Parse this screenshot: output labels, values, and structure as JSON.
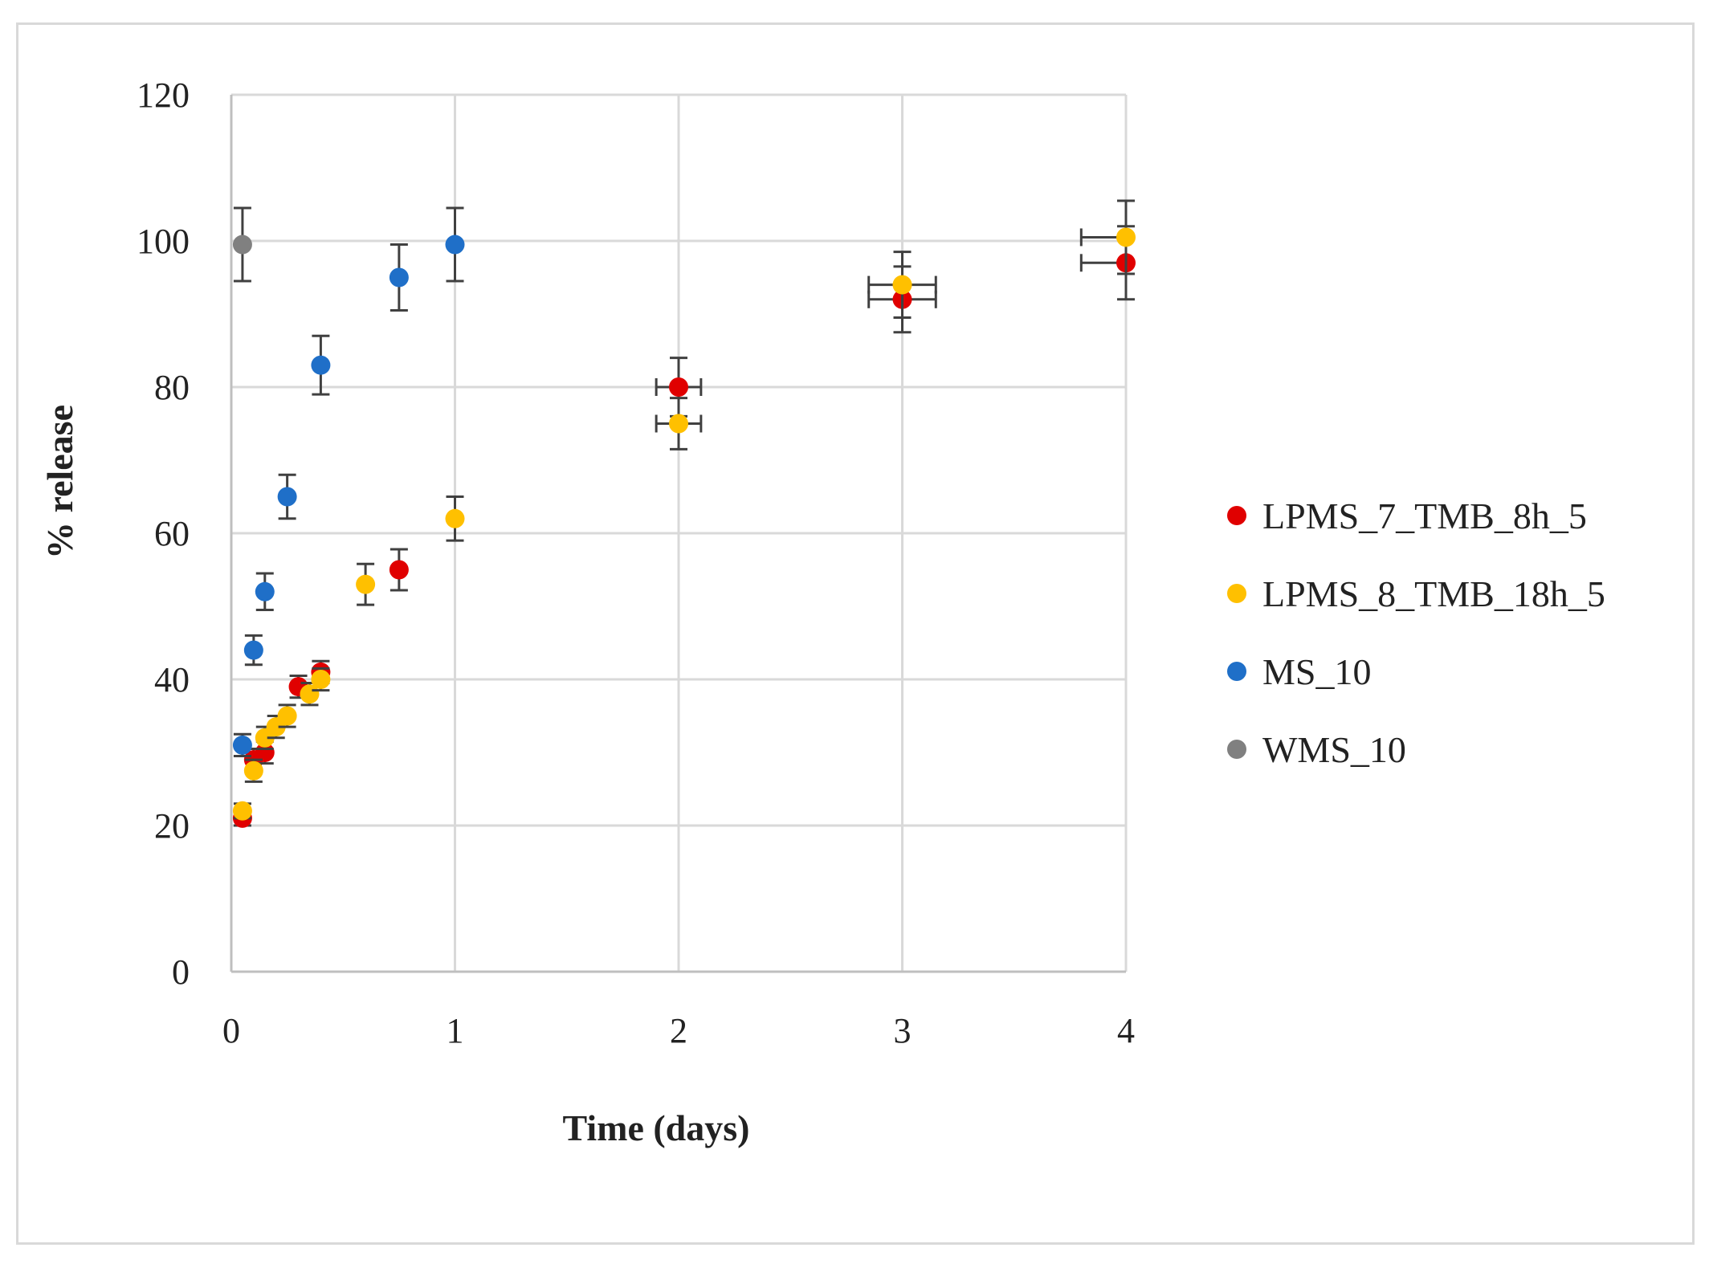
{
  "chart_data": {
    "type": "scatter",
    "title": "",
    "xlabel": "Time (days)",
    "ylabel": "% release",
    "xlim": [
      0,
      4
    ],
    "ylim": [
      0,
      120
    ],
    "xticks": [
      "0",
      "1",
      "2",
      "3",
      "4"
    ],
    "yticks": [
      "0",
      "20",
      "40",
      "60",
      "80",
      "100",
      "120"
    ],
    "grid": true,
    "legend_position": "right",
    "series": [
      {
        "name": "LPMS_7_TMB_8h_5",
        "color": "#e00000",
        "points": [
          {
            "x": 0.05,
            "y": 21,
            "yerr": 1,
            "xerr": 0
          },
          {
            "x": 0.1,
            "y": 29,
            "yerr": 1.5,
            "xerr": 0
          },
          {
            "x": 0.15,
            "y": 30,
            "yerr": 1.5,
            "xerr": 0
          },
          {
            "x": 0.3,
            "y": 39,
            "yerr": 1.5,
            "xerr": 0
          },
          {
            "x": 0.4,
            "y": 41,
            "yerr": 1.5,
            "xerr": 0
          },
          {
            "x": 0.75,
            "y": 55,
            "yerr": 2.8,
            "xerr": 0
          },
          {
            "x": 2,
            "y": 80,
            "yerr": 4,
            "xerr": 0.1
          },
          {
            "x": 3,
            "y": 92,
            "yerr": 4.5,
            "xerr": 0.15
          },
          {
            "x": 4,
            "y": 97,
            "yerr": 5,
            "xerr": 0.2
          }
        ]
      },
      {
        "name": "LPMS_8_TMB_18h_5",
        "color": "#ffc000",
        "points": [
          {
            "x": 0.05,
            "y": 22,
            "yerr": 1,
            "xerr": 0
          },
          {
            "x": 0.1,
            "y": 27.5,
            "yerr": 1.5,
            "xerr": 0
          },
          {
            "x": 0.15,
            "y": 32,
            "yerr": 1.5,
            "xerr": 0
          },
          {
            "x": 0.2,
            "y": 33.5,
            "yerr": 1.5,
            "xerr": 0
          },
          {
            "x": 0.25,
            "y": 35,
            "yerr": 1.5,
            "xerr": 0
          },
          {
            "x": 0.35,
            "y": 38,
            "yerr": 1.5,
            "xerr": 0
          },
          {
            "x": 0.4,
            "y": 40,
            "yerr": 1.5,
            "xerr": 0
          },
          {
            "x": 0.6,
            "y": 53,
            "yerr": 2.8,
            "xerr": 0
          },
          {
            "x": 1,
            "y": 62,
            "yerr": 3,
            "xerr": 0
          },
          {
            "x": 2,
            "y": 75,
            "yerr": 3.5,
            "xerr": 0.1
          },
          {
            "x": 3,
            "y": 94,
            "yerr": 4.5,
            "xerr": 0.15
          },
          {
            "x": 4,
            "y": 100.5,
            "yerr": 5,
            "xerr": 0.2
          }
        ]
      },
      {
        "name": "MS_10",
        "color": "#1f6fc8",
        "points": [
          {
            "x": 0.05,
            "y": 31,
            "yerr": 1.5,
            "xerr": 0
          },
          {
            "x": 0.1,
            "y": 44,
            "yerr": 2,
            "xerr": 0
          },
          {
            "x": 0.15,
            "y": 52,
            "yerr": 2.5,
            "xerr": 0
          },
          {
            "x": 0.25,
            "y": 65,
            "yerr": 3,
            "xerr": 0
          },
          {
            "x": 0.4,
            "y": 83,
            "yerr": 4,
            "xerr": 0
          },
          {
            "x": 0.75,
            "y": 95,
            "yerr": 4.5,
            "xerr": 0
          },
          {
            "x": 1,
            "y": 99.5,
            "yerr": 5,
            "xerr": 0
          }
        ]
      },
      {
        "name": "WMS_10",
        "color": "#808080",
        "points": [
          {
            "x": 0.05,
            "y": 99.5,
            "yerr": 5,
            "xerr": 0
          }
        ]
      }
    ]
  }
}
